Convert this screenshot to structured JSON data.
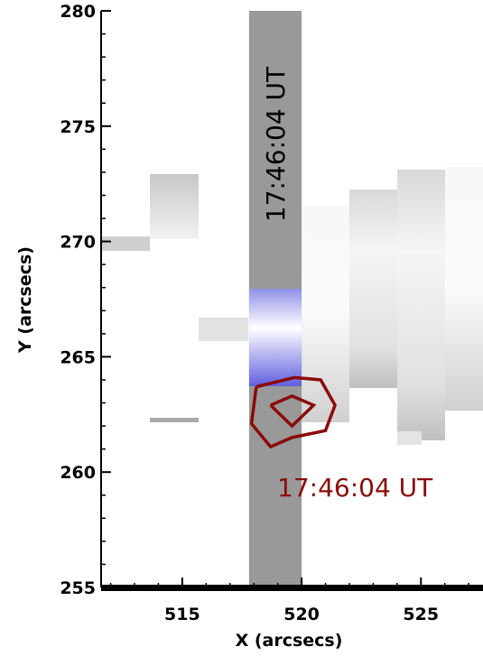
{
  "chart_data": {
    "type": "contour",
    "x_label": "X (arcsecs)",
    "y_label": "Y (arcsecs)",
    "xlim": [
      511.6,
      527.6
    ],
    "ylim": [
      255,
      280
    ],
    "xticks": [
      515,
      520,
      525
    ],
    "yticks": [
      255,
      260,
      265,
      270,
      275,
      280
    ],
    "minor_step": 1,
    "slit_x": [
      517.8,
      520
    ],
    "slit_label": "17:46:04 UT",
    "contour_label": "17:46:04 UT",
    "contour_color": "#8b0a0a",
    "contours": [
      {
        "x": [
          518.1,
          519.7,
          520.8,
          521.4,
          521.0,
          519.6,
          518.7,
          517.9,
          518.1
        ],
        "y": [
          263.7,
          264.1,
          264.0,
          262.9,
          261.8,
          261.5,
          261.1,
          262.1,
          263.7
        ]
      },
      {
        "x": [
          518.7,
          519.6,
          520.5,
          519.6,
          518.7
        ],
        "y": [
          262.9,
          263.3,
          262.9,
          262.0,
          262.9
        ]
      }
    ]
  }
}
